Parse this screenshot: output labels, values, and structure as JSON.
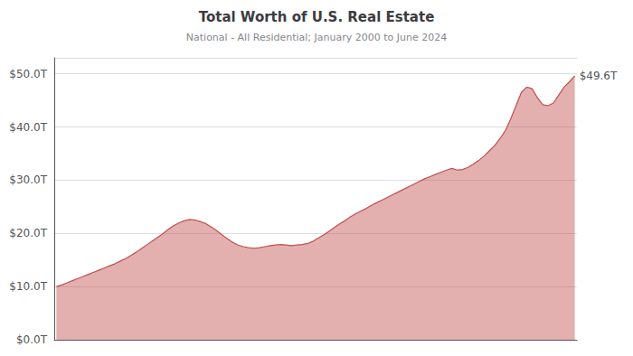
{
  "chart_data": {
    "type": "area",
    "title": "Total Worth of U.S. Real Estate",
    "subtitle": "National - All Residential; January 2000 to June 2024",
    "color": "#c0504d",
    "grid": true,
    "tick_labels": "y",
    "xlim": [
      1999.9,
      2024.35
    ],
    "ylim": [
      0,
      53
    ],
    "yticks": [
      {
        "value": 0,
        "label": "$0.0T"
      },
      {
        "value": 10,
        "label": "$10.0T"
      },
      {
        "value": 20,
        "label": "$20.0T"
      },
      {
        "value": 30,
        "label": "$30.0T"
      },
      {
        "value": 40,
        "label": "$40.0T"
      },
      {
        "value": 50,
        "label": "$50.0T"
      }
    ],
    "annotations": [
      {
        "text": "$49.6T",
        "x": 2024.25,
        "y": 49.6
      }
    ],
    "x": [
      2000.0,
      2000.25,
      2000.5,
      2000.75,
      2001.0,
      2001.25,
      2001.5,
      2001.75,
      2002.0,
      2002.25,
      2002.5,
      2002.75,
      2003.0,
      2003.25,
      2003.5,
      2003.75,
      2004.0,
      2004.25,
      2004.5,
      2004.75,
      2005.0,
      2005.25,
      2005.5,
      2005.75,
      2006.0,
      2006.25,
      2006.5,
      2006.75,
      2007.0,
      2007.25,
      2007.5,
      2007.75,
      2008.0,
      2008.25,
      2008.5,
      2008.75,
      2009.0,
      2009.25,
      2009.5,
      2009.75,
      2010.0,
      2010.25,
      2010.5,
      2010.75,
      2011.0,
      2011.25,
      2011.5,
      2011.75,
      2012.0,
      2012.25,
      2012.5,
      2012.75,
      2013.0,
      2013.25,
      2013.5,
      2013.75,
      2014.0,
      2014.25,
      2014.5,
      2014.75,
      2015.0,
      2015.25,
      2015.5,
      2015.75,
      2016.0,
      2016.25,
      2016.5,
      2016.75,
      2017.0,
      2017.25,
      2017.5,
      2017.75,
      2018.0,
      2018.25,
      2018.5,
      2018.75,
      2019.0,
      2019.25,
      2019.5,
      2019.75,
      2020.0,
      2020.25,
      2020.5,
      2020.75,
      2021.0,
      2021.25,
      2021.5,
      2021.75,
      2022.0,
      2022.25,
      2022.5,
      2022.75,
      2023.0,
      2023.25,
      2023.5,
      2023.75,
      2024.0,
      2024.25
    ],
    "values": [
      10.0,
      10.3,
      10.7,
      11.1,
      11.5,
      11.9,
      12.3,
      12.7,
      13.1,
      13.5,
      13.9,
      14.3,
      14.8,
      15.3,
      15.9,
      16.5,
      17.2,
      17.9,
      18.6,
      19.3,
      20.0,
      20.8,
      21.5,
      22.0,
      22.4,
      22.6,
      22.5,
      22.2,
      21.8,
      21.2,
      20.5,
      19.7,
      19.0,
      18.3,
      17.8,
      17.5,
      17.3,
      17.2,
      17.3,
      17.5,
      17.7,
      17.8,
      17.9,
      17.8,
      17.7,
      17.8,
      17.9,
      18.1,
      18.5,
      19.1,
      19.7,
      20.4,
      21.1,
      21.8,
      22.4,
      23.1,
      23.7,
      24.2,
      24.7,
      25.3,
      25.8,
      26.3,
      26.8,
      27.3,
      27.8,
      28.3,
      28.8,
      29.3,
      29.8,
      30.3,
      30.7,
      31.1,
      31.5,
      31.9,
      32.2,
      31.9,
      32.0,
      32.4,
      33.0,
      33.7,
      34.5,
      35.5,
      36.5,
      37.8,
      39.3,
      41.5,
      44.0,
      46.5,
      47.5,
      47.2,
      45.5,
      44.2,
      44.0,
      44.5,
      46.0,
      47.5,
      48.5,
      49.6
    ]
  }
}
